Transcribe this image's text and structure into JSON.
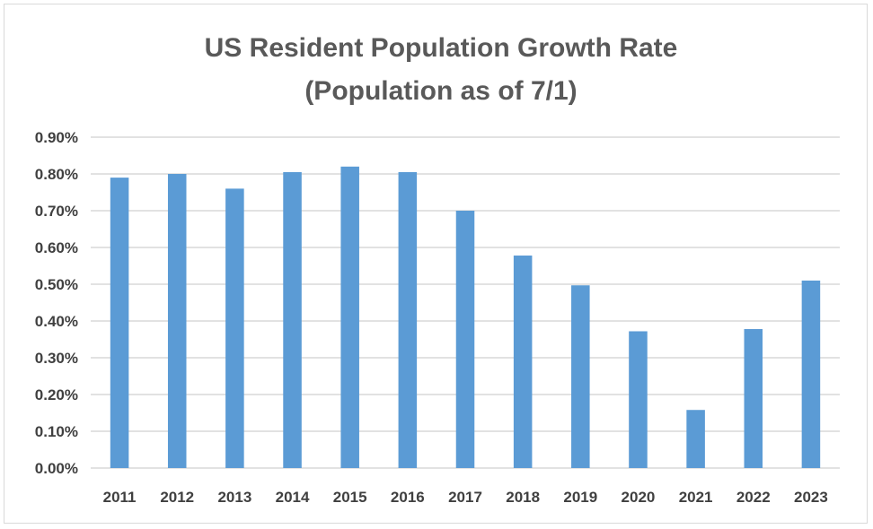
{
  "chart_data": {
    "type": "bar",
    "title": [
      "US Resident Population Growth Rate",
      "(Population as of 7/1)"
    ],
    "xlabel": "",
    "ylabel": "",
    "categories": [
      "2011",
      "2012",
      "2013",
      "2014",
      "2015",
      "2016",
      "2017",
      "2018",
      "2019",
      "2020",
      "2021",
      "2022",
      "2023"
    ],
    "values": [
      0.79,
      0.8,
      0.76,
      0.805,
      0.82,
      0.805,
      0.7,
      0.578,
      0.497,
      0.372,
      0.158,
      0.378,
      0.51
    ],
    "ylim": [
      0,
      0.9
    ],
    "yticks": [
      0.0,
      0.1,
      0.2,
      0.3,
      0.4,
      0.5,
      0.6,
      0.7,
      0.8,
      0.9
    ],
    "ytick_labels": [
      "0.00%",
      "0.10%",
      "0.20%",
      "0.30%",
      "0.40%",
      "0.50%",
      "0.60%",
      "0.70%",
      "0.80%",
      "0.90%"
    ],
    "value_unit": "%",
    "grid": true,
    "legend": "none",
    "colors": {
      "bar": "#5b9bd5",
      "grid": "#d9d9d9",
      "axis_text": "#404040",
      "title": "#595959"
    }
  }
}
